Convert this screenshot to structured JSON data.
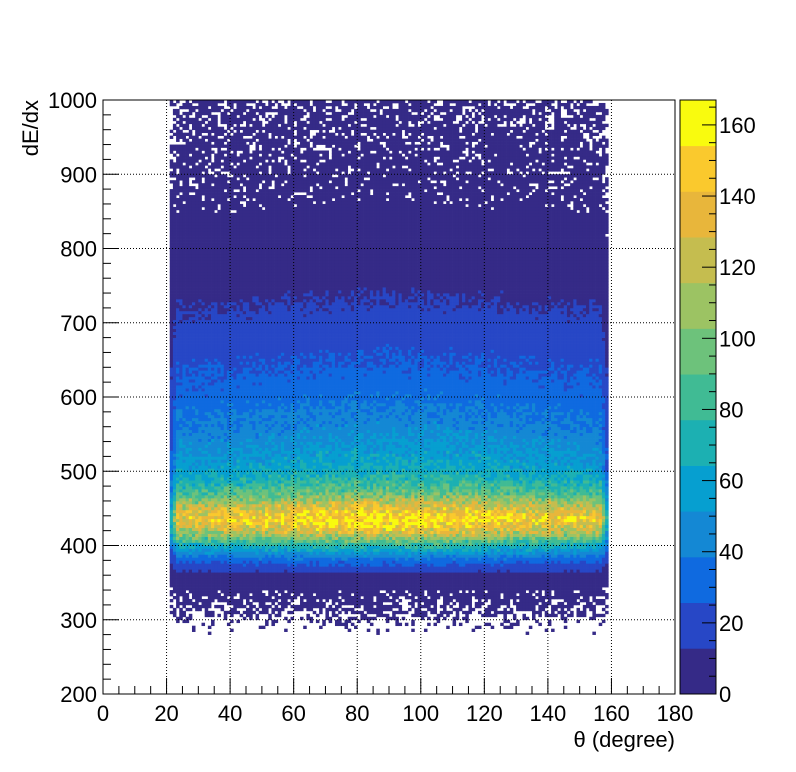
{
  "chart_data": {
    "type": "heatmap",
    "title": "",
    "xlabel": "θ (degree)",
    "ylabel": "dE/dx",
    "xlim": [
      0,
      180
    ],
    "ylim": [
      200,
      1000
    ],
    "x_ticks": [
      0,
      20,
      40,
      60,
      80,
      100,
      120,
      140,
      160,
      180
    ],
    "y_ticks": [
      200,
      300,
      400,
      500,
      600,
      700,
      800,
      900,
      1000
    ],
    "grid": true,
    "populated_theta_range": [
      21,
      159
    ],
    "band_peak_dEdx": 435,
    "band_peak_counts": 150,
    "colorbar": {
      "min": 0,
      "max": 167,
      "ticks": [
        0,
        20,
        40,
        60,
        80,
        100,
        120,
        140,
        160
      ],
      "palette": "parula",
      "colors": [
        "#352a87",
        "#2747c6",
        "#0f6ae0",
        "#1488d4",
        "#069fd0",
        "#1cb0b2",
        "#40bb94",
        "#6dc27b",
        "#9cc363",
        "#c5bd4f",
        "#e8b63b",
        "#fac92d",
        "#f9fb0e"
      ]
    },
    "intensity_profile": [
      {
        "dEdx": 300,
        "counts": 0.3
      },
      {
        "dEdx": 340,
        "counts": 2
      },
      {
        "dEdx": 360,
        "counts": 8
      },
      {
        "dEdx": 380,
        "counts": 30
      },
      {
        "dEdx": 400,
        "counts": 70
      },
      {
        "dEdx": 420,
        "counts": 125
      },
      {
        "dEdx": 435,
        "counts": 150
      },
      {
        "dEdx": 450,
        "counts": 130
      },
      {
        "dEdx": 470,
        "counts": 90
      },
      {
        "dEdx": 500,
        "counts": 62
      },
      {
        "dEdx": 550,
        "counts": 45
      },
      {
        "dEdx": 600,
        "counts": 33
      },
      {
        "dEdx": 650,
        "counts": 24
      },
      {
        "dEdx": 700,
        "counts": 16
      },
      {
        "dEdx": 750,
        "counts": 10
      },
      {
        "dEdx": 800,
        "counts": 6
      },
      {
        "dEdx": 850,
        "counts": 2.5
      },
      {
        "dEdx": 900,
        "counts": 1.8
      },
      {
        "dEdx": 1000,
        "counts": 1.2
      }
    ]
  }
}
